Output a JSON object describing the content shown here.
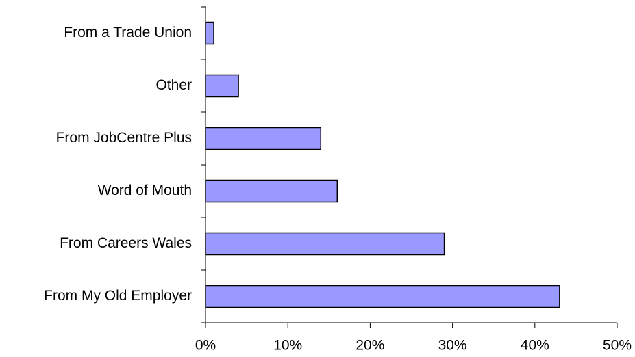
{
  "chart_data": {
    "type": "hbar",
    "categories": [
      "From a Trade Union",
      "Other",
      "From JobCentre Plus",
      "Word of Mouth",
      "From Careers Wales",
      "From My Old Employer"
    ],
    "values": [
      1,
      4,
      14,
      16,
      29,
      43
    ],
    "color": "#9999ff",
    "xlim": [
      0,
      50
    ],
    "xticks": [
      {
        "value": 0,
        "label": "0%"
      },
      {
        "value": 10,
        "label": "10%"
      },
      {
        "value": 20,
        "label": "20%"
      },
      {
        "value": 30,
        "label": "30%"
      },
      {
        "value": 40,
        "label": "40%"
      },
      {
        "value": 50,
        "label": "50%"
      }
    ],
    "grid": false
  }
}
